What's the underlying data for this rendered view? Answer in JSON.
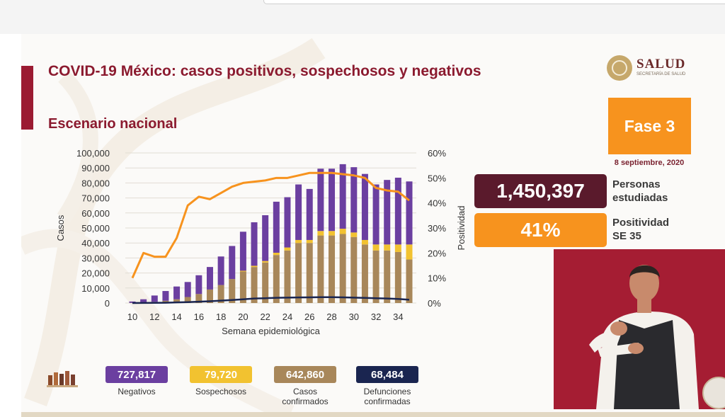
{
  "header": {
    "title": "COVID-19 México: casos positivos, sospechosos y negativos",
    "subtitle": "Escenario nacional"
  },
  "logo": {
    "name": "SALUD",
    "tagline": "SECRETARÍA DE SALUD"
  },
  "phase": {
    "label": "Fase 3",
    "date": "8 septiembre, 2020"
  },
  "stats": [
    {
      "value": "1,450,397",
      "label_line1": "Personas",
      "label_line2": "estudiadas",
      "color": "#5a1a2c"
    },
    {
      "value": "41%",
      "label_line1": "Positividad",
      "label_line2": "SE 35",
      "color": "#f7931e"
    }
  ],
  "summary": [
    {
      "value": "727,817",
      "label_line1": "Negativos",
      "label_line2": "",
      "color": "#6b3fa0"
    },
    {
      "value": "79,720",
      "label_line1": "Sospechosos",
      "label_line2": "",
      "color": "#f2c230"
    },
    {
      "value": "642,860",
      "label_line1": "Casos",
      "label_line2": "confirmados",
      "color": "#a8875a"
    },
    {
      "value": "68,484",
      "label_line1": "Defunciones",
      "label_line2": "confirmadas",
      "color": "#1a2550"
    }
  ],
  "chart_data": {
    "type": "bar",
    "stacked": true,
    "xlabel": "Semana epidemiológica",
    "ylabel": "Casos",
    "y2label": "Positividad",
    "ylim": [
      0,
      100000
    ],
    "y2lim": [
      0,
      60
    ],
    "yticks": [
      "0",
      "10,000",
      "20,000",
      "30,000",
      "40,000",
      "50,000",
      "60,000",
      "70,000",
      "80,000",
      "90,000",
      "100,000"
    ],
    "y2ticks": [
      "0%",
      "10%",
      "20%",
      "30%",
      "40%",
      "50%",
      "60%"
    ],
    "xticks": [
      "10",
      "12",
      "14",
      "16",
      "18",
      "20",
      "22",
      "24",
      "26",
      "28",
      "30",
      "32",
      "34"
    ],
    "weeks": [
      10,
      11,
      12,
      13,
      14,
      15,
      16,
      17,
      18,
      19,
      20,
      21,
      22,
      23,
      24,
      25,
      26,
      27,
      28,
      29,
      30,
      31,
      32,
      33,
      34,
      35
    ],
    "series": [
      {
        "role": "confirmados",
        "color": "#a8875a",
        "values": [
          100,
          300,
          800,
          1500,
          2500,
          4000,
          6000,
          9000,
          12000,
          16000,
          21000,
          24000,
          27000,
          32000,
          35000,
          40000,
          40000,
          45000,
          45000,
          46000,
          44000,
          39000,
          35000,
          35000,
          34000,
          29000
        ]
      },
      {
        "role": "sospechosos",
        "color": "#f2c230",
        "values": [
          0,
          0,
          0,
          0,
          0,
          0,
          0,
          0,
          0,
          0,
          500,
          800,
          1000,
          1500,
          2000,
          2000,
          2000,
          3000,
          3000,
          3500,
          3000,
          3000,
          4000,
          4000,
          5000,
          10000
        ]
      },
      {
        "role": "negativos",
        "color": "#6b3fa0",
        "values": [
          900,
          2200,
          4200,
          6500,
          8500,
          10000,
          12500,
          15000,
          19000,
          22000,
          26000,
          29000,
          30500,
          34000,
          33500,
          37000,
          34000,
          41500,
          41500,
          43000,
          43500,
          44000,
          40000,
          43000,
          44500,
          42000
        ]
      },
      {
        "role": "defunciones",
        "type": "line",
        "color": "#1a2550",
        "values": [
          0,
          50,
          100,
          200,
          400,
          600,
          900,
          1200,
          1600,
          2000,
          2500,
          3000,
          3200,
          3500,
          3600,
          3700,
          3800,
          3900,
          3900,
          3800,
          3600,
          3400,
          3200,
          3000,
          2700,
          2200
        ]
      },
      {
        "role": "positividad",
        "type": "line",
        "axis": "right",
        "color": "#f7931e",
        "values": [
          10,
          20,
          18.5,
          18.5,
          26,
          39,
          42.5,
          41.5,
          44,
          46.5,
          48,
          48.5,
          49,
          50,
          50,
          51,
          52,
          52,
          52,
          51.5,
          51,
          50,
          46,
          45,
          44.5,
          41
        ]
      }
    ]
  }
}
